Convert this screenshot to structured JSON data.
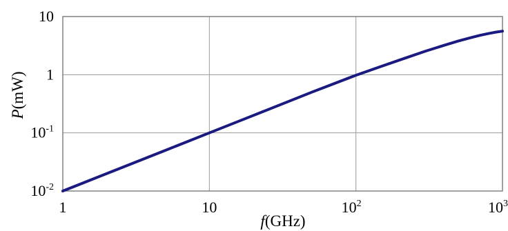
{
  "chart_data": {
    "type": "line",
    "title": "",
    "xlabel": {
      "italic": "f",
      "rest": "(GHz)"
    },
    "ylabel": {
      "italic": "P",
      "rest": "(mW)"
    },
    "x_scale": "log",
    "y_scale": "log",
    "xlim": [
      1,
      1000
    ],
    "ylim": [
      0.01,
      10
    ],
    "grid": true,
    "legend": "none",
    "x_ticks": [
      {
        "value": 1,
        "base": "1",
        "exp": ""
      },
      {
        "value": 10,
        "base": "10",
        "exp": ""
      },
      {
        "value": 100,
        "base": "10",
        "exp": "2"
      },
      {
        "value": 1000,
        "base": "10",
        "exp": "3"
      }
    ],
    "y_ticks": [
      {
        "value": 0.01,
        "base": "10",
        "exp": "-2"
      },
      {
        "value": 0.1,
        "base": "10",
        "exp": "-1"
      },
      {
        "value": 1,
        "base": "1",
        "exp": ""
      },
      {
        "value": 10,
        "base": "10",
        "exp": ""
      }
    ],
    "series": [
      {
        "color": "#1a1a80",
        "x": [
          1,
          2,
          5,
          10,
          20,
          50,
          100,
          150,
          200,
          300,
          400,
          500,
          600,
          700,
          800,
          900,
          1000
        ],
        "y": [
          0.01,
          0.02,
          0.05,
          0.1,
          0.2,
          0.5,
          0.98,
          1.4,
          1.8,
          2.55,
          3.2,
          3.8,
          4.3,
          4.75,
          5.1,
          5.4,
          5.6
        ]
      }
    ]
  }
}
